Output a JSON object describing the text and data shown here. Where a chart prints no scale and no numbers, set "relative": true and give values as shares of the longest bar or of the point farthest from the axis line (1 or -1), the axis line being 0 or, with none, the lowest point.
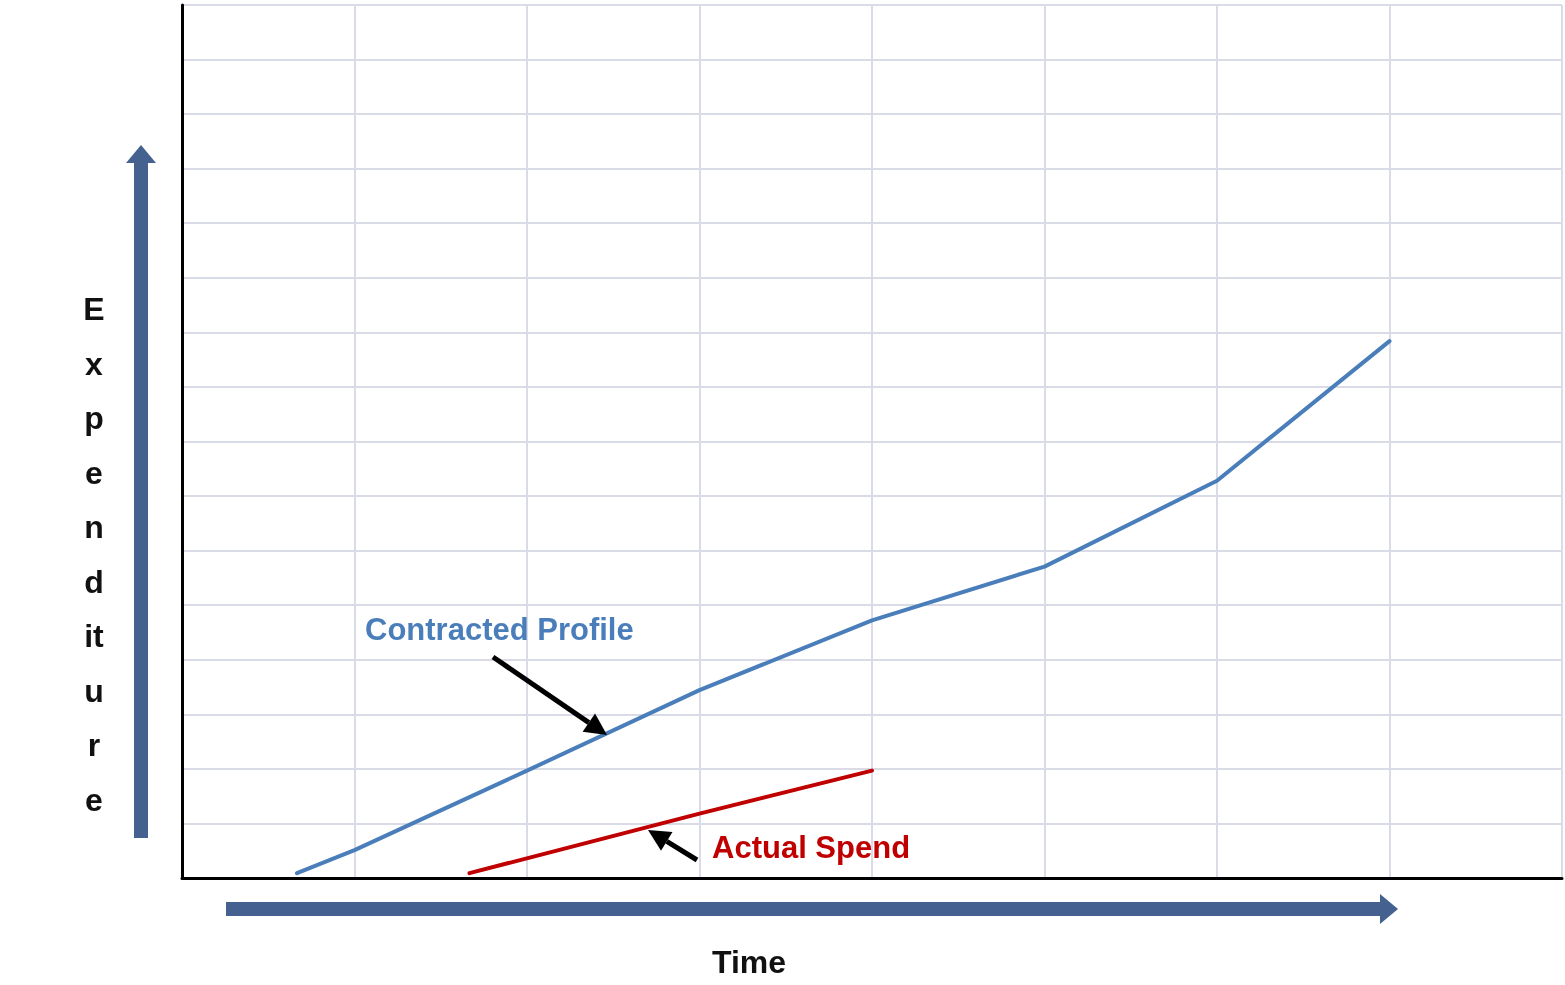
{
  "chart_data": {
    "type": "line",
    "relative": true,
    "xlabel": "Time",
    "ylabel": "Expenditure",
    "grid": true,
    "legend": false,
    "marker": "none",
    "line_style": "solid",
    "categories": [
      null,
      null,
      null,
      null,
      null,
      null,
      null,
      null,
      null,
      null,
      null,
      null,
      null,
      null,
      null,
      null,
      null,
      null,
      null,
      null,
      null,
      null,
      null,
      null,
      null
    ],
    "series": [
      {
        "name": "Contracted Profile",
        "color": "#4a7ebb",
        "values": [
          null,
          null,
          0.009,
          0.052,
          null,
          null,
          0.2,
          null,
          null,
          0.35,
          null,
          null,
          0.48,
          null,
          null,
          0.58,
          null,
          null,
          0.74,
          null,
          null,
          1,
          null,
          null,
          null
        ]
      },
      {
        "name": "Actual Spend",
        "color": "#c00000",
        "values": [
          null,
          null,
          null,
          null,
          null,
          0.009,
          null,
          null,
          null,
          0.12,
          null,
          null,
          0.2,
          null,
          null,
          null,
          null,
          null,
          null,
          null,
          null,
          null,
          null,
          null,
          null
        ]
      }
    ]
  }
}
